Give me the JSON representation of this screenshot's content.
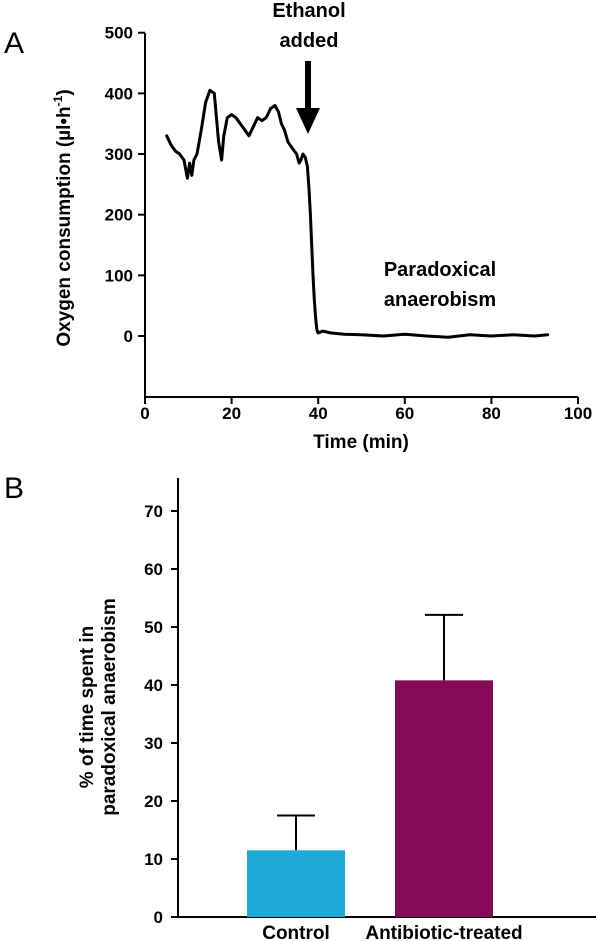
{
  "panels": {
    "a_letter": "A",
    "b_letter": "B"
  },
  "chart_data": [
    {
      "type": "line",
      "panel": "A",
      "xlabel": "Time (min)",
      "ylabel": "Oxygen consumption (µl•h",
      "ylabel_superscript": "-1",
      "ylabel_close": ")",
      "xlim": [
        0,
        100
      ],
      "ylim": [
        -100,
        500
      ],
      "xticks": [
        0,
        20,
        40,
        60,
        80,
        100
      ],
      "yticks": [
        0,
        100,
        200,
        300,
        400,
        500
      ],
      "annotations": {
        "arrow_label_1": "Ethanol",
        "arrow_label_2": "added",
        "arrow_x": 37.5,
        "region_label_1": "Paradoxical",
        "region_label_2": "anaerobism"
      },
      "series": [
        {
          "x": [
            5,
            6,
            7,
            8,
            9,
            9.8,
            10.3,
            10.8,
            11.3,
            12,
            13,
            14,
            15,
            16,
            17,
            17.7,
            18.2,
            19,
            20,
            21,
            22,
            23,
            24,
            25,
            26,
            27,
            28,
            29,
            30,
            30.8,
            31.5,
            32.2,
            33,
            34,
            35,
            35.6,
            36,
            36.5,
            37,
            37.5,
            37.9,
            38.2,
            38.5,
            38.8,
            39.1,
            39.4,
            39.7,
            40,
            41,
            43,
            46,
            50,
            55,
            60,
            65,
            70,
            75,
            80,
            85,
            90,
            93
          ],
          "y": [
            330,
            315,
            305,
            300,
            290,
            260,
            285,
            265,
            290,
            300,
            340,
            385,
            405,
            400,
            320,
            290,
            330,
            360,
            365,
            360,
            350,
            340,
            330,
            345,
            360,
            355,
            360,
            375,
            380,
            370,
            350,
            340,
            320,
            310,
            300,
            285,
            290,
            300,
            295,
            280,
            240,
            200,
            150,
            100,
            60,
            30,
            10,
            5,
            8,
            5,
            3,
            2,
            0,
            3,
            0,
            -2,
            2,
            0,
            2,
            0,
            2
          ]
        }
      ]
    },
    {
      "type": "bar",
      "panel": "B",
      "ylabel_line1": "% of time spent in",
      "ylabel_line2": "paradoxical anaerobism",
      "ylim": [
        0,
        75
      ],
      "yticks": [
        0,
        10,
        20,
        30,
        40,
        50,
        60,
        70
      ],
      "categories": [
        "Control",
        "Antibiotic-treated"
      ],
      "values": [
        11.5,
        40.8
      ],
      "errors": [
        6,
        11.3
      ],
      "colors": [
        "#1fa9d6",
        "#820a56"
      ]
    }
  ]
}
